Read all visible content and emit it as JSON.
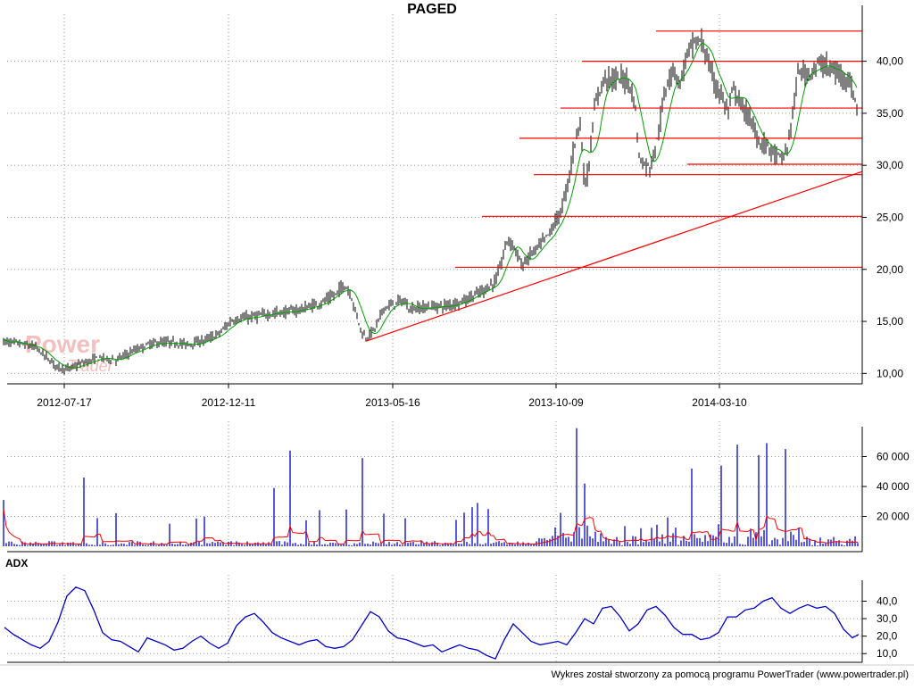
{
  "title": "PAGED",
  "adx_label": "ADX",
  "footer": "Wykres został stworzony za pomocą programu PowerTrader (www.powertrader.pl)",
  "watermark": {
    "line1": "Power",
    "line2": "Trader"
  },
  "colors": {
    "candle": "#000000",
    "moving_average": "#00a000",
    "support_lines": "#ff0000",
    "trendline": "#ff0000",
    "volume_bars": "#0000cc",
    "volume_average": "#ff0000",
    "adx_line": "#0000cc",
    "grid": "#999999",
    "watermark": "#f2b9b9"
  },
  "chart_data": [
    {
      "type": "candlestick",
      "title": "PAGED",
      "x_tick_labels": [
        "2012-07-17",
        "2012-12-11",
        "2013-05-16",
        "2013-10-09",
        "2014-03-10"
      ],
      "y_tick_labels": [
        "10,00",
        "15,00",
        "20,00",
        "25,00",
        "30,00",
        "35,00",
        "40,00"
      ],
      "ylim": [
        9,
        44
      ],
      "grid": "dotted",
      "price_path": [
        [
          0,
          13.1
        ],
        [
          20,
          12.9
        ],
        [
          40,
          12.5
        ],
        [
          55,
          11.3
        ],
        [
          65,
          10.6
        ],
        [
          75,
          10.4
        ],
        [
          90,
          10.9
        ],
        [
          110,
          11.5
        ],
        [
          130,
          11.3
        ],
        [
          150,
          12.2
        ],
        [
          170,
          12.9
        ],
        [
          190,
          13.0
        ],
        [
          210,
          12.8
        ],
        [
          230,
          13.2
        ],
        [
          245,
          13.8
        ],
        [
          260,
          15.1
        ],
        [
          280,
          15.4
        ],
        [
          300,
          15.7
        ],
        [
          320,
          15.9
        ],
        [
          340,
          16.2
        ],
        [
          360,
          16.8
        ],
        [
          375,
          17.5
        ],
        [
          385,
          18.5
        ],
        [
          392,
          17.8
        ],
        [
          400,
          15.5
        ],
        [
          405,
          14.0
        ],
        [
          410,
          13.4
        ],
        [
          420,
          14.3
        ],
        [
          430,
          16.3
        ],
        [
          440,
          16.6
        ],
        [
          450,
          17.0
        ],
        [
          460,
          16.2
        ],
        [
          480,
          16.4
        ],
        [
          500,
          16.5
        ],
        [
          520,
          17.0
        ],
        [
          540,
          17.9
        ],
        [
          555,
          18.8
        ],
        [
          563,
          21.0
        ],
        [
          568,
          22.8
        ],
        [
          575,
          22.4
        ],
        [
          585,
          20.3
        ],
        [
          595,
          21.5
        ],
        [
          605,
          22.3
        ],
        [
          615,
          23.4
        ],
        [
          625,
          25.0
        ],
        [
          630,
          26.0
        ],
        [
          638,
          29.0
        ],
        [
          645,
          32.8
        ],
        [
          650,
          34.2
        ],
        [
          655,
          27.9
        ],
        [
          660,
          30.0
        ],
        [
          665,
          34.8
        ],
        [
          670,
          36.8
        ],
        [
          678,
          38.5
        ],
        [
          688,
          38.2
        ],
        [
          698,
          38.4
        ],
        [
          706,
          37.8
        ],
        [
          712,
          35.3
        ],
        [
          716,
          30.8
        ],
        [
          720,
          30.2
        ],
        [
          728,
          29.8
        ],
        [
          735,
          31.8
        ],
        [
          742,
          35.5
        ],
        [
          748,
          38.2
        ],
        [
          755,
          39.3
        ],
        [
          762,
          37.8
        ],
        [
          770,
          40.8
        ],
        [
          778,
          41.8
        ],
        [
          786,
          41.9
        ],
        [
          792,
          40.3
        ],
        [
          800,
          38.0
        ],
        [
          808,
          36.8
        ],
        [
          815,
          35.1
        ],
        [
          822,
          37.3
        ],
        [
          830,
          35.8
        ],
        [
          838,
          34.8
        ],
        [
          845,
          33.5
        ],
        [
          852,
          32.0
        ],
        [
          860,
          32.0
        ],
        [
          868,
          31.0
        ],
        [
          876,
          30.6
        ],
        [
          882,
          31.5
        ],
        [
          888,
          35.0
        ],
        [
          895,
          39.2
        ],
        [
          903,
          38.7
        ],
        [
          912,
          39.3
        ],
        [
          920,
          39.8
        ],
        [
          930,
          39.2
        ],
        [
          940,
          38.8
        ],
        [
          950,
          38.4
        ],
        [
          957,
          36.5
        ],
        [
          961,
          35.5
        ]
      ],
      "horizontal_levels": [
        {
          "price": 42.9,
          "x_start": 735
        },
        {
          "price": 40.0,
          "x_start": 652
        },
        {
          "price": 35.5,
          "x_start": 628
        },
        {
          "price": 32.6,
          "x_start": 582
        },
        {
          "price": 30.1,
          "x_start": 770
        },
        {
          "price": 29.1,
          "x_start": 598
        },
        {
          "price": 25.1,
          "x_start": 540
        },
        {
          "price": 20.2,
          "x_start": 510
        }
      ],
      "trendline": {
        "x_start": 410,
        "price_start": 13.1,
        "x_end": 966,
        "price_end": 29.4
      }
    },
    {
      "type": "bar",
      "series_name": "Volume",
      "y_tick_labels": [
        "20 000",
        "40 000",
        "60 000"
      ],
      "ylim": [
        0,
        80000
      ],
      "notable_spikes": [
        {
          "x": 5,
          "value": 31000
        },
        {
          "x": 93,
          "value": 46000
        },
        {
          "x": 308,
          "value": 39000
        },
        {
          "x": 324,
          "value": 64000
        },
        {
          "x": 406,
          "value": 59000
        },
        {
          "x": 535,
          "value": 29000
        },
        {
          "x": 645,
          "value": 79000
        },
        {
          "x": 655,
          "value": 42000
        },
        {
          "x": 775,
          "value": 52000
        },
        {
          "x": 808,
          "value": 54000
        },
        {
          "x": 826,
          "value": 68000
        },
        {
          "x": 851,
          "value": 61000
        },
        {
          "x": 858,
          "value": 69000
        },
        {
          "x": 880,
          "value": 65000
        }
      ]
    },
    {
      "type": "line",
      "series_name": "ADX",
      "y_tick_labels": [
        "10,0",
        "20,0",
        "30,0",
        "40,0"
      ],
      "ylim": [
        5,
        52
      ],
      "points": [
        [
          5,
          25
        ],
        [
          15,
          21
        ],
        [
          25,
          18
        ],
        [
          35,
          15
        ],
        [
          45,
          13
        ],
        [
          55,
          17
        ],
        [
          65,
          28
        ],
        [
          75,
          43
        ],
        [
          85,
          48
        ],
        [
          95,
          46
        ],
        [
          105,
          35
        ],
        [
          115,
          22
        ],
        [
          125,
          18
        ],
        [
          135,
          17
        ],
        [
          145,
          14
        ],
        [
          155,
          11
        ],
        [
          165,
          19
        ],
        [
          175,
          17
        ],
        [
          185,
          15
        ],
        [
          195,
          12
        ],
        [
          205,
          13
        ],
        [
          215,
          17
        ],
        [
          225,
          20
        ],
        [
          235,
          16
        ],
        [
          245,
          13
        ],
        [
          255,
          16
        ],
        [
          265,
          26
        ],
        [
          275,
          31
        ],
        [
          285,
          33
        ],
        [
          295,
          28
        ],
        [
          305,
          22
        ],
        [
          315,
          19
        ],
        [
          325,
          17
        ],
        [
          335,
          15
        ],
        [
          345,
          17
        ],
        [
          355,
          18
        ],
        [
          365,
          14
        ],
        [
          375,
          13
        ],
        [
          385,
          14
        ],
        [
          395,
          18
        ],
        [
          405,
          26
        ],
        [
          415,
          34
        ],
        [
          425,
          31
        ],
        [
          435,
          23
        ],
        [
          445,
          19
        ],
        [
          455,
          18
        ],
        [
          465,
          16
        ],
        [
          475,
          14
        ],
        [
          485,
          15
        ],
        [
          495,
          11
        ],
        [
          505,
          13
        ],
        [
          515,
          15
        ],
        [
          525,
          13
        ],
        [
          535,
          12
        ],
        [
          545,
          9
        ],
        [
          555,
          7
        ],
        [
          565,
          18
        ],
        [
          575,
          27
        ],
        [
          585,
          22
        ],
        [
          595,
          17
        ],
        [
          605,
          15
        ],
        [
          615,
          16
        ],
        [
          625,
          17
        ],
        [
          635,
          15
        ],
        [
          645,
          22
        ],
        [
          655,
          30
        ],
        [
          665,
          27
        ],
        [
          675,
          36
        ],
        [
          685,
          37
        ],
        [
          695,
          31
        ],
        [
          705,
          23
        ],
        [
          715,
          27
        ],
        [
          725,
          35
        ],
        [
          735,
          37
        ],
        [
          745,
          32
        ],
        [
          755,
          25
        ],
        [
          765,
          21
        ],
        [
          775,
          21
        ],
        [
          785,
          18
        ],
        [
          795,
          19
        ],
        [
          805,
          22
        ],
        [
          815,
          31
        ],
        [
          825,
          31
        ],
        [
          835,
          35
        ],
        [
          845,
          36
        ],
        [
          855,
          40
        ],
        [
          865,
          42
        ],
        [
          875,
          36
        ],
        [
          885,
          33
        ],
        [
          895,
          36
        ],
        [
          905,
          38
        ],
        [
          915,
          36
        ],
        [
          925,
          37
        ],
        [
          935,
          33
        ],
        [
          945,
          24
        ],
        [
          955,
          19
        ],
        [
          962,
          21
        ]
      ]
    }
  ]
}
